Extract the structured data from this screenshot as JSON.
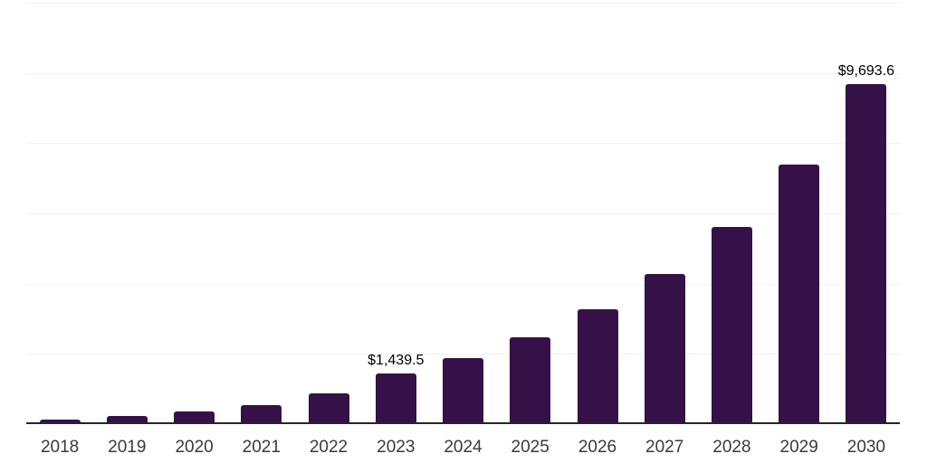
{
  "chart_data": {
    "type": "bar",
    "title": "",
    "xlabel": "",
    "ylabel": "",
    "categories": [
      "2018",
      "2019",
      "2020",
      "2021",
      "2022",
      "2023",
      "2024",
      "2025",
      "2026",
      "2027",
      "2028",
      "2029",
      "2030"
    ],
    "values": [
      135,
      240,
      360,
      545,
      875,
      1439.5,
      1890.7,
      2483.4,
      3261.9,
      4284.5,
      5627.6,
      7391.8,
      9693.6
    ],
    "data_labels": {
      "2023": "$1,439.5",
      "2030": "$9,693.6"
    },
    "ylim": [
      0,
      12000
    ],
    "gridline_interval": 2000,
    "grid": true,
    "legend": false,
    "colors": {
      "bar": "#351148",
      "gridline": "#f1f1f1",
      "axis_line": "#262626",
      "tick_label": "#3a3a3a",
      "data_label": "#000000",
      "background": "#ffffff"
    }
  }
}
